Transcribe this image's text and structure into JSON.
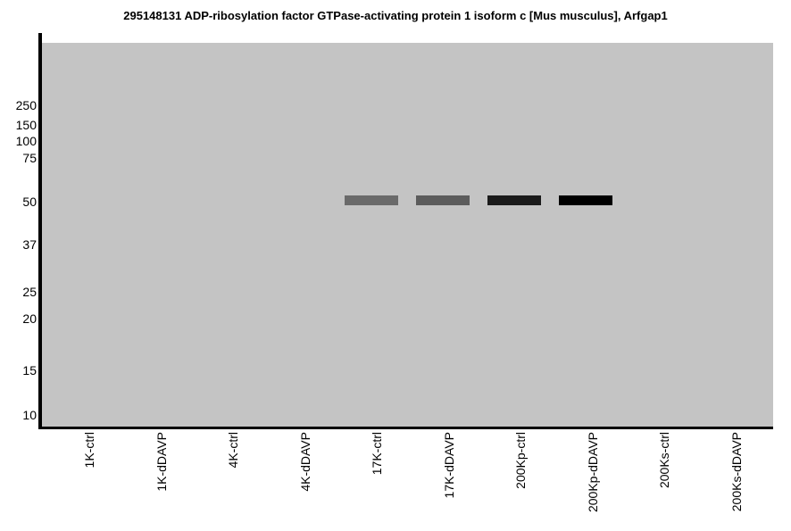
{
  "chart_data": {
    "type": "western_blot",
    "title": "295148131 ADP-ribosylation factor GTPase-activating protein 1 isoform c [Mus musculus], Arfgap1",
    "categories": [
      "1K-ctrl",
      "1K-dDAVP",
      "4K-ctrl",
      "4K-dDAVP",
      "17K-ctrl",
      "17K-dDAVP",
      "200Kp-ctrl",
      "200Kp-dDAVP",
      "200Ks-ctrl",
      "200Ks-dDAVP"
    ],
    "mw_markers_kda": [
      "250",
      "150",
      "100",
      "75",
      "50",
      "37",
      "25",
      "20",
      "15",
      "10"
    ],
    "bands": [
      {
        "lane": "17K-ctrl",
        "lane_index": 4,
        "mw_kda": 50,
        "color": "#6a6a6a",
        "relative_intensity": 0.45
      },
      {
        "lane": "17K-dDAVP",
        "lane_index": 5,
        "mw_kda": 50,
        "color": "#5c5c5c",
        "relative_intensity": 0.55
      },
      {
        "lane": "200Kp-ctrl",
        "lane_index": 6,
        "mw_kda": 50,
        "color": "#1b1b1b",
        "relative_intensity": 0.9
      },
      {
        "lane": "200Kp-dDAVP",
        "lane_index": 7,
        "mw_kda": 50,
        "color": "#000000",
        "relative_intensity": 1.0
      }
    ],
    "plot_bg_color": "#c4c4c4",
    "axis_color": "#000000",
    "grid": false,
    "legend": "none"
  }
}
